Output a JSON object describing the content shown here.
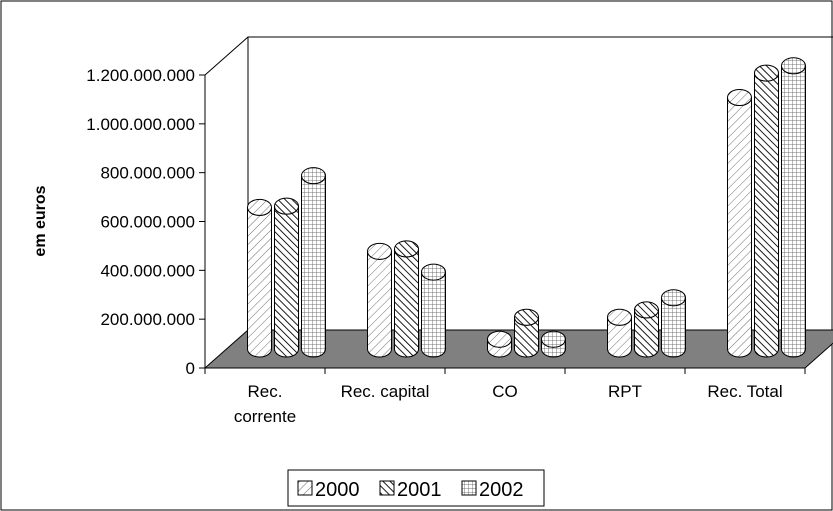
{
  "chart_data": {
    "type": "bar",
    "ylabel": "em euros",
    "ylim": [
      0,
      1200000000
    ],
    "yticks": [
      "0",
      "200.000.000",
      "400.000.000",
      "600.000.000",
      "800.000.000",
      "1.000.000.000",
      "1.200.000.000"
    ],
    "categories": [
      [
        "Rec.",
        "corrente"
      ],
      [
        "Rec. capital"
      ],
      [
        "CO"
      ],
      [
        "RPT"
      ],
      [
        "Rec. Total"
      ]
    ],
    "series": [
      {
        "name": "2000",
        "values": [
          580000000,
          400000000,
          40000000,
          130000000,
          1030000000
        ]
      },
      {
        "name": "2001",
        "values": [
          585000000,
          410000000,
          130000000,
          160000000,
          1130000000
        ]
      },
      {
        "name": "2002",
        "values": [
          710000000,
          315000000,
          40000000,
          210000000,
          1160000000
        ]
      }
    ],
    "legend_position": "bottom",
    "grid": false,
    "style": "3d-cylinder",
    "colors": {
      "floor": "#808080",
      "bar_fill": "#ffffff",
      "pattern": "#000000"
    }
  }
}
